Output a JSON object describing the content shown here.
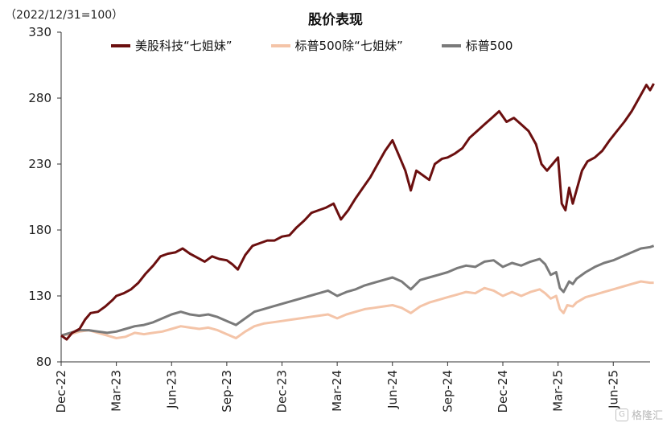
{
  "header": {
    "unit": "（2022/12/31=100）",
    "title": "股价表现"
  },
  "watermark": {
    "icon": "G",
    "text": "格隆汇"
  },
  "chart_data": {
    "type": "line",
    "title": "股价表现",
    "ylabel": "（2022/12/31=100）",
    "ylim": [
      80,
      330
    ],
    "y_ticks": [
      80,
      130,
      180,
      230,
      280,
      330
    ],
    "x_tick_labels": [
      "Dec-22",
      "Mar-23",
      "Jun-23",
      "Sep-23",
      "Dec-23",
      "Mar-24",
      "Jun-24",
      "Sep-24",
      "Dec-24",
      "Mar-25",
      "Jun-25"
    ],
    "x_range": [
      0,
      32
    ],
    "grid": false,
    "legend_position": "top",
    "series": [
      {
        "name": "美股科技“七姐妹”",
        "color": "#6b0f0f",
        "points": [
          [
            0,
            100
          ],
          [
            0.3,
            97
          ],
          [
            0.6,
            102
          ],
          [
            1,
            105
          ],
          [
            1.3,
            112
          ],
          [
            1.6,
            117
          ],
          [
            2,
            118
          ],
          [
            2.4,
            122
          ],
          [
            2.8,
            127
          ],
          [
            3,
            130
          ],
          [
            3.4,
            132
          ],
          [
            3.8,
            135
          ],
          [
            4.2,
            140
          ],
          [
            4.6,
            147
          ],
          [
            5,
            153
          ],
          [
            5.4,
            160
          ],
          [
            5.8,
            162
          ],
          [
            6.2,
            163
          ],
          [
            6.6,
            166
          ],
          [
            7,
            162
          ],
          [
            7.4,
            159
          ],
          [
            7.8,
            156
          ],
          [
            8.2,
            160
          ],
          [
            8.6,
            158
          ],
          [
            9,
            157
          ],
          [
            9.3,
            154
          ],
          [
            9.6,
            150
          ],
          [
            10,
            161
          ],
          [
            10.4,
            168
          ],
          [
            10.8,
            170
          ],
          [
            11.2,
            172
          ],
          [
            11.6,
            172
          ],
          [
            12,
            175
          ],
          [
            12.4,
            176
          ],
          [
            12.8,
            182
          ],
          [
            13.2,
            187
          ],
          [
            13.6,
            193
          ],
          [
            14,
            195
          ],
          [
            14.4,
            197
          ],
          [
            14.8,
            200
          ],
          [
            15.2,
            188
          ],
          [
            15.6,
            195
          ],
          [
            16,
            204
          ],
          [
            16.4,
            212
          ],
          [
            16.8,
            220
          ],
          [
            17.2,
            230
          ],
          [
            17.6,
            240
          ],
          [
            18,
            248
          ],
          [
            18.4,
            235
          ],
          [
            18.7,
            225
          ],
          [
            19,
            210
          ],
          [
            19.3,
            225
          ],
          [
            19.6,
            222
          ],
          [
            20,
            218
          ],
          [
            20.3,
            230
          ],
          [
            20.7,
            234
          ],
          [
            21,
            235
          ],
          [
            21.4,
            238
          ],
          [
            21.8,
            242
          ],
          [
            22.2,
            250
          ],
          [
            22.6,
            255
          ],
          [
            23,
            260
          ],
          [
            23.4,
            265
          ],
          [
            23.8,
            270
          ],
          [
            24.2,
            262
          ],
          [
            24.6,
            265
          ],
          [
            25,
            260
          ],
          [
            25.4,
            255
          ],
          [
            25.8,
            245
          ],
          [
            26.1,
            230
          ],
          [
            26.4,
            225
          ],
          [
            26.7,
            230
          ],
          [
            27,
            235
          ],
          [
            27.2,
            200
          ],
          [
            27.4,
            195
          ],
          [
            27.6,
            212
          ],
          [
            27.8,
            200
          ],
          [
            28,
            210
          ],
          [
            28.3,
            225
          ],
          [
            28.6,
            232
          ],
          [
            29,
            235
          ],
          [
            29.4,
            240
          ],
          [
            29.8,
            248
          ],
          [
            30.2,
            255
          ],
          [
            30.6,
            262
          ],
          [
            31,
            270
          ],
          [
            31.4,
            280
          ],
          [
            31.8,
            290
          ],
          [
            32,
            286
          ],
          [
            32.2,
            291
          ]
        ]
      },
      {
        "name": "标普500除“七姐妹”",
        "color": "#f4c4a8",
        "points": [
          [
            0,
            100
          ],
          [
            0.5,
            101
          ],
          [
            1,
            103
          ],
          [
            1.5,
            104
          ],
          [
            2,
            102
          ],
          [
            2.5,
            100
          ],
          [
            3,
            98
          ],
          [
            3.5,
            99
          ],
          [
            4,
            102
          ],
          [
            4.5,
            101
          ],
          [
            5,
            102
          ],
          [
            5.5,
            103
          ],
          [
            6,
            105
          ],
          [
            6.5,
            107
          ],
          [
            7,
            106
          ],
          [
            7.5,
            105
          ],
          [
            8,
            106
          ],
          [
            8.5,
            104
          ],
          [
            9,
            101
          ],
          [
            9.5,
            98
          ],
          [
            10,
            103
          ],
          [
            10.5,
            107
          ],
          [
            11,
            109
          ],
          [
            11.5,
            110
          ],
          [
            12,
            111
          ],
          [
            12.5,
            112
          ],
          [
            13,
            113
          ],
          [
            13.5,
            114
          ],
          [
            14,
            115
          ],
          [
            14.5,
            116
          ],
          [
            15,
            113
          ],
          [
            15.5,
            116
          ],
          [
            16,
            118
          ],
          [
            16.5,
            120
          ],
          [
            17,
            121
          ],
          [
            17.5,
            122
          ],
          [
            18,
            123
          ],
          [
            18.5,
            121
          ],
          [
            19,
            117
          ],
          [
            19.5,
            122
          ],
          [
            20,
            125
          ],
          [
            20.5,
            127
          ],
          [
            21,
            129
          ],
          [
            21.5,
            131
          ],
          [
            22,
            133
          ],
          [
            22.5,
            132
          ],
          [
            23,
            136
          ],
          [
            23.5,
            134
          ],
          [
            24,
            130
          ],
          [
            24.5,
            133
          ],
          [
            25,
            130
          ],
          [
            25.5,
            133
          ],
          [
            26,
            135
          ],
          [
            26.3,
            132
          ],
          [
            26.6,
            128
          ],
          [
            26.9,
            130
          ],
          [
            27.1,
            120
          ],
          [
            27.3,
            117
          ],
          [
            27.5,
            123
          ],
          [
            27.8,
            122
          ],
          [
            28,
            125
          ],
          [
            28.5,
            129
          ],
          [
            29,
            131
          ],
          [
            29.5,
            133
          ],
          [
            30,
            135
          ],
          [
            30.5,
            137
          ],
          [
            31,
            139
          ],
          [
            31.5,
            141
          ],
          [
            32,
            140
          ],
          [
            32.2,
            140
          ]
        ]
      },
      {
        "name": "标普500",
        "color": "#7a7a7a",
        "points": [
          [
            0,
            100
          ],
          [
            0.5,
            102
          ],
          [
            1,
            104
          ],
          [
            1.5,
            104
          ],
          [
            2,
            103
          ],
          [
            2.5,
            102
          ],
          [
            3,
            103
          ],
          [
            3.5,
            105
          ],
          [
            4,
            107
          ],
          [
            4.5,
            108
          ],
          [
            5,
            110
          ],
          [
            5.5,
            113
          ],
          [
            6,
            116
          ],
          [
            6.5,
            118
          ],
          [
            7,
            116
          ],
          [
            7.5,
            115
          ],
          [
            8,
            116
          ],
          [
            8.5,
            114
          ],
          [
            9,
            111
          ],
          [
            9.5,
            108
          ],
          [
            10,
            113
          ],
          [
            10.5,
            118
          ],
          [
            11,
            120
          ],
          [
            11.5,
            122
          ],
          [
            12,
            124
          ],
          [
            12.5,
            126
          ],
          [
            13,
            128
          ],
          [
            13.5,
            130
          ],
          [
            14,
            132
          ],
          [
            14.5,
            134
          ],
          [
            15,
            130
          ],
          [
            15.5,
            133
          ],
          [
            16,
            135
          ],
          [
            16.5,
            138
          ],
          [
            17,
            140
          ],
          [
            17.5,
            142
          ],
          [
            18,
            144
          ],
          [
            18.5,
            141
          ],
          [
            19,
            135
          ],
          [
            19.5,
            142
          ],
          [
            20,
            144
          ],
          [
            20.5,
            146
          ],
          [
            21,
            148
          ],
          [
            21.5,
            151
          ],
          [
            22,
            153
          ],
          [
            22.5,
            152
          ],
          [
            23,
            156
          ],
          [
            23.5,
            157
          ],
          [
            24,
            152
          ],
          [
            24.5,
            155
          ],
          [
            25,
            153
          ],
          [
            25.5,
            156
          ],
          [
            26,
            158
          ],
          [
            26.3,
            154
          ],
          [
            26.6,
            146
          ],
          [
            26.9,
            148
          ],
          [
            27.1,
            136
          ],
          [
            27.3,
            133
          ],
          [
            27.6,
            141
          ],
          [
            27.8,
            139
          ],
          [
            28,
            143
          ],
          [
            28.5,
            148
          ],
          [
            29,
            152
          ],
          [
            29.5,
            155
          ],
          [
            30,
            157
          ],
          [
            30.5,
            160
          ],
          [
            31,
            163
          ],
          [
            31.5,
            166
          ],
          [
            32,
            167
          ],
          [
            32.2,
            168
          ]
        ]
      }
    ]
  }
}
